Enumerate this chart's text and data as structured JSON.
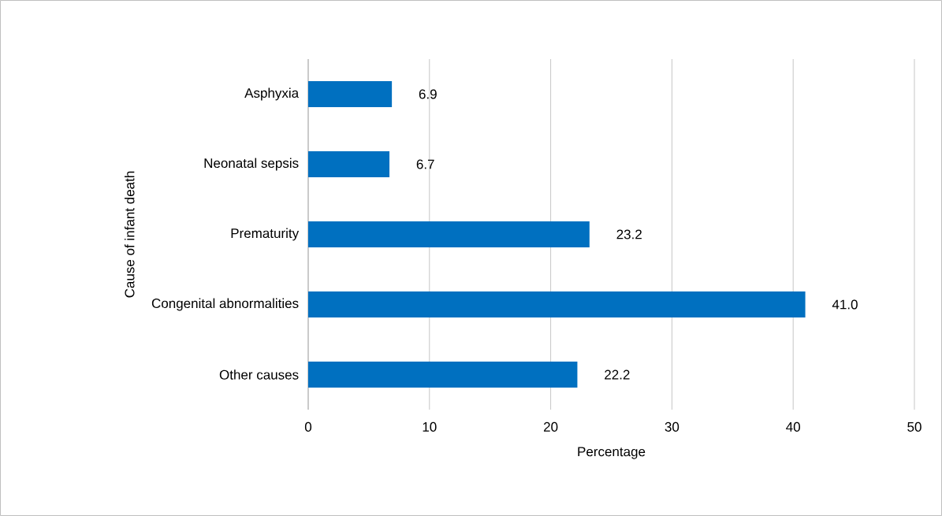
{
  "chart_data": {
    "type": "bar",
    "orientation": "horizontal",
    "categories": [
      "Asphyxia",
      "Neonatal sepsis",
      "Prematurity",
      "Congenital abnormalities",
      "Other causes"
    ],
    "values": [
      6.9,
      6.7,
      23.2,
      41.0,
      22.2
    ],
    "value_labels": [
      "6.9",
      "6.7",
      "23.2",
      "41.0",
      "22.2"
    ],
    "color": "#0070c0",
    "xlabel": "Percentage",
    "ylabel": "Cause of infant death",
    "xlim": [
      0,
      50
    ],
    "xticks": [
      0,
      10,
      20,
      30,
      40,
      50
    ],
    "grid": "x"
  }
}
